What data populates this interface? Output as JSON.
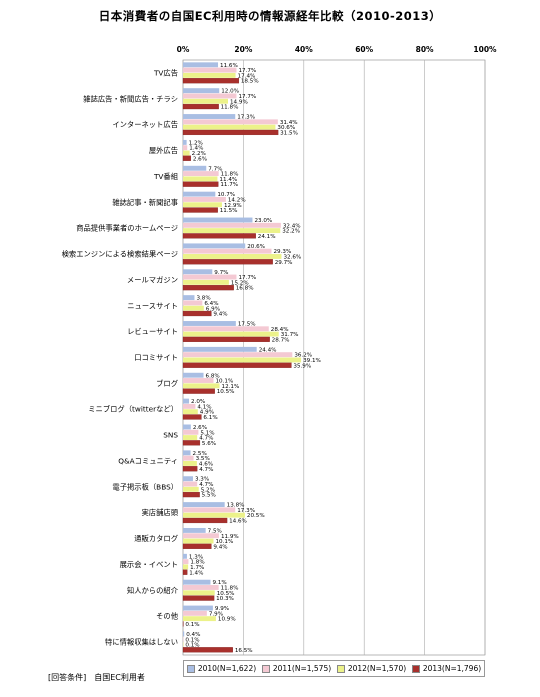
{
  "chart_data": {
    "type": "bar",
    "orientation": "horizontal",
    "title": "日本消費者の自国EC利用時の情報源経年比較（2010-2013）",
    "xlim": [
      0,
      100
    ],
    "x_ticks": [
      "0%",
      "20%",
      "40%",
      "60%",
      "80%",
      "100%"
    ],
    "grid": true,
    "legend_position": "bottom",
    "categories": [
      "TV広告",
      "雑誌広告・新聞広告・チラシ",
      "インターネット広告",
      "屋外広告",
      "TV番組",
      "雑誌記事・新聞記事",
      "商品提供事業者のホームページ",
      "検索エンジンによる検索結果ページ",
      "メールマガジン",
      "ニュースサイト",
      "レビューサイト",
      "口コミサイト",
      "ブログ",
      "ミニブログ（twitterなど）",
      "SNS",
      "Q&Aコミュニティ",
      "電子掲示板（BBS）",
      "実店舗店頭",
      "通販カタログ",
      "展示会・イベント",
      "知人からの紹介",
      "その他",
      "特に情報収集はしない"
    ],
    "series": [
      {
        "name": "2010(N=1,622)",
        "color": "#a9bee3",
        "values": [
          11.6,
          12.0,
          17.3,
          1.2,
          7.7,
          10.7,
          23.0,
          20.6,
          9.7,
          3.8,
          17.5,
          24.4,
          6.8,
          2.0,
          2.6,
          2.5,
          3.3,
          13.8,
          7.5,
          1.3,
          9.1,
          9.9,
          0.4
        ],
        "labels": [
          "11.6%",
          "12.0%",
          "17.3%",
          "1.2%",
          "7.7%",
          "10.7%",
          "23.0%",
          "20.6%",
          "9.7%",
          "3.8%",
          "17.5%",
          "24.4%",
          "6.8%",
          "2.0%",
          "2.6%",
          "2.5%",
          "3.3%",
          "13.8%",
          "7.5%",
          "1.3%",
          "9.1%",
          "9.9%",
          "0.4%"
        ]
      },
      {
        "name": "2011(N=1,575)",
        "color": "#f4c9d3",
        "values": [
          17.7,
          17.7,
          31.4,
          1.4,
          11.8,
          14.2,
          32.4,
          29.3,
          17.7,
          6.4,
          28.4,
          36.2,
          10.1,
          4.1,
          5.1,
          3.5,
          4.7,
          17.3,
          11.9,
          1.8,
          11.8,
          7.9,
          0.1
        ],
        "labels": [
          "17.7%",
          "17.7%",
          "31.4%",
          "1.4%",
          "11.8%",
          "14.2%",
          "32.4%",
          "29.3%",
          "17.7%",
          "6.4%",
          "28.4%",
          "36.2%",
          "10.1%",
          "4.1%",
          "5.1%",
          "3.5%",
          "4.7%",
          "17.3%",
          "11.9%",
          "1.8%",
          "11.8%",
          "7.9%",
          "0.1%"
        ]
      },
      {
        "name": "2012(N=1,570)",
        "color": "#ecf28a",
        "values": [
          17.4,
          14.9,
          30.6,
          2.2,
          11.4,
          12.9,
          32.2,
          32.6,
          15.2,
          6.9,
          31.7,
          39.1,
          12.1,
          4.9,
          4.7,
          4.6,
          5.2,
          20.5,
          10.1,
          1.7,
          10.5,
          10.9,
          0.1
        ],
        "labels": [
          "17.4%",
          "14.9%",
          "30.6%",
          "2.2%",
          "11.4%",
          "12.9%",
          "32.2%",
          "32.6%",
          "15.2%",
          "6.9%",
          "31.7%",
          "39.1%",
          "12.1%",
          "4.9%",
          "4.7%",
          "4.6%",
          "5.2%",
          "20.5%",
          "10.1%",
          "1.7%",
          "10.5%",
          "10.9%",
          "0.1%"
        ]
      },
      {
        "name": "2013(N=1,796)",
        "color": "#a8302c",
        "values": [
          18.5,
          11.8,
          31.5,
          2.6,
          11.7,
          11.5,
          24.1,
          29.7,
          16.8,
          9.4,
          28.7,
          35.9,
          10.5,
          6.1,
          5.6,
          4.7,
          5.5,
          14.6,
          9.4,
          1.4,
          10.3,
          0.1,
          16.5
        ],
        "labels": [
          "18.5%",
          "11.8%",
          "31.5%",
          "2.6%",
          "11.7%",
          "11.5%",
          "24.1%",
          "29.7%",
          "16.8%",
          "9.4%",
          "28.7%",
          "35.9%",
          "10.5%",
          "6.1%",
          "5.6%",
          "4.7%",
          "5.5%",
          "14.6%",
          "9.4%",
          "1.4%",
          "10.3%",
          "0.1%",
          "16.5%"
        ]
      }
    ]
  },
  "footnote": "[回答条件]　自国EC利用者"
}
